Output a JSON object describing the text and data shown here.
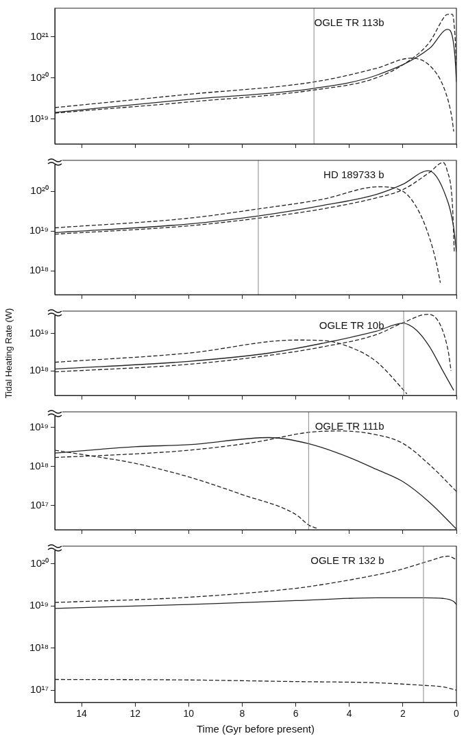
{
  "chart_data": [
    {
      "type": "line",
      "log": true,
      "grid": false,
      "legend": false,
      "tick_labels": "y",
      "xlim": [
        15,
        0
      ],
      "xticks": [
        {
          "value": 14,
          "label": null
        },
        {
          "value": 12,
          "label": null
        },
        {
          "value": 10,
          "label": null
        },
        {
          "value": 8,
          "label": null
        },
        {
          "value": 6,
          "label": null
        },
        {
          "value": 4,
          "label": null
        },
        {
          "value": 2,
          "label": null
        },
        {
          "value": 0,
          "label": null
        }
      ],
      "ylim": [
        2.5e+18,
        4.9e+21
      ],
      "yticks": [
        {
          "value": 1e+19,
          "label": "10¹⁹"
        },
        {
          "value": 1e+20,
          "label": "10²⁰"
        },
        {
          "value": 1e+21,
          "label": "10²¹"
        }
      ],
      "series": [
        {
          "color": "#222222",
          "line_style": "solid",
          "x": [
            15,
            10,
            5.3,
            3,
            1,
            0.33,
            0.15,
            0.05,
            0
          ],
          "values": [
            1.45e+19,
            3e+19,
            5.6e+19,
            1.15e+20,
            5.2e+20,
            1.5e+21,
            1e+21,
            3e+20,
            8e+19
          ]
        },
        {
          "color": "#222222",
          "line_style": "dashed",
          "x": [
            15,
            10,
            5.3,
            3,
            1.7,
            1,
            0.46,
            0.18,
            0.1
          ],
          "values": [
            1.9e+19,
            4e+19,
            8e+19,
            1.7e+20,
            3e+20,
            2e+20,
            5.6e+19,
            1.2e+19,
            5e+18
          ]
        },
        {
          "color": "#222222",
          "line_style": "dashed",
          "x": [
            15,
            10,
            5.3,
            3,
            1.7,
            1,
            0.4,
            0.3,
            0.15,
            0.05,
            0
          ],
          "values": [
            1.4e+19,
            2.6e+19,
            5.1e+19,
            1e+20,
            2.8e+20,
            7.4e+20,
            3.3e+21,
            3.5e+21,
            3.5e+21,
            1e+21,
            2e+20
          ]
        }
      ],
      "ref_lines": [
        {
          "axis": "x",
          "value": 5.32,
          "color": "#888888"
        }
      ],
      "annotations": [
        "OGLE TR 113b"
      ]
    },
    {
      "type": "line",
      "log": true,
      "grid": false,
      "legend": false,
      "tick_labels": "y",
      "xlim": [
        15,
        0
      ],
      "xticks": [
        {
          "value": 14,
          "label": null
        },
        {
          "value": 12,
          "label": null
        },
        {
          "value": 10,
          "label": null
        },
        {
          "value": 8,
          "label": null
        },
        {
          "value": 6,
          "label": null
        },
        {
          "value": 4,
          "label": null
        },
        {
          "value": 2,
          "label": null
        },
        {
          "value": 0,
          "label": null
        }
      ],
      "ylim": [
        2.5e+17,
        6e+20
      ],
      "yticks": [
        {
          "value": 1e+18,
          "label": "10¹⁸"
        },
        {
          "value": 1e+19,
          "label": "10¹⁹"
        },
        {
          "value": 1e+20,
          "label": "10²⁰"
        }
      ],
      "series": [
        {
          "color": "#222222",
          "line_style": "solid",
          "x": [
            15,
            10,
            7.4,
            5,
            3,
            2,
            1.05,
            0.46,
            0.1,
            0
          ],
          "values": [
            9.1e+18,
            1.5e+19,
            2.4e+19,
            4.4e+19,
            8.3e+19,
            1.5e+20,
            3.3e+20,
            9.8e+19,
            1.2e+19,
            3e+18
          ]
        },
        {
          "color": "#222222",
          "line_style": "dashed",
          "x": [
            15,
            10,
            7.4,
            5,
            2.9,
            2,
            1.4,
            1,
            0.75,
            0.6
          ],
          "values": [
            1.2e+19,
            2.1e+19,
            3.6e+19,
            6.3e+19,
            1.3e+20,
            1e+20,
            3.1e+19,
            6.6e+18,
            1.6e+18,
            5e+17
          ]
        },
        {
          "color": "#222222",
          "line_style": "dashed",
          "x": [
            15,
            10,
            7.4,
            5,
            3,
            2,
            1,
            0.5,
            0.35,
            0.15,
            0.08
          ],
          "values": [
            8.3e+18,
            1.35e+19,
            2.1e+19,
            3.6e+19,
            6.8e+19,
            1.1e+20,
            3e+20,
            5.3e+20,
            3.4e+20,
            4.8e+19,
            3e+18
          ]
        }
      ],
      "ref_lines": [
        {
          "axis": "x",
          "value": 7.4,
          "color": "#888888"
        }
      ],
      "annotations": [
        "HD 189733 b"
      ]
    },
    {
      "type": "line",
      "log": true,
      "grid": false,
      "legend": false,
      "tick_labels": "y",
      "xlim": [
        15,
        0
      ],
      "ylabel": "Tidal Heating Rate (W)",
      "xticks": [
        {
          "value": 14,
          "label": null
        },
        {
          "value": 12,
          "label": null
        },
        {
          "value": 10,
          "label": null
        },
        {
          "value": 8,
          "label": null
        },
        {
          "value": 6,
          "label": null
        },
        {
          "value": 4,
          "label": null
        },
        {
          "value": 2,
          "label": null
        },
        {
          "value": 0,
          "label": null
        }
      ],
      "ylim": [
        2.2e+17,
        4e+19
      ],
      "yticks": [
        {
          "value": 1e+18,
          "label": "10¹⁸"
        },
        {
          "value": 1e+19,
          "label": "10¹⁹"
        }
      ],
      "series": [
        {
          "color": "#222222",
          "line_style": "solid",
          "x": [
            15,
            10,
            7,
            5,
            3,
            2,
            1.5,
            1,
            0.5,
            0.1
          ],
          "values": [
            1.12e+18,
            1.8e+18,
            3e+18,
            5.5e+18,
            1.15e+19,
            1.9e+19,
            1.25e+19,
            4.4e+18,
            9.8e+17,
            3e+17
          ]
        },
        {
          "color": "#222222",
          "line_style": "dashed",
          "x": [
            15,
            10,
            6,
            5,
            4,
            3,
            2,
            1.85
          ],
          "values": [
            1.7e+18,
            3e+18,
            6.7e+18,
            6.5e+18,
            4.4e+18,
            1.8e+18,
            3.2e+17,
            2.4e+17
          ]
        },
        {
          "color": "#222222",
          "line_style": "dashed",
          "x": [
            15,
            10,
            7,
            5,
            3,
            2,
            1.05,
            0.6,
            0.3,
            0.2
          ],
          "values": [
            9.4e+17,
            1.5e+18,
            2.6e+18,
            4.4e+18,
            9.3e+18,
            1.95e+19,
            3.3e+19,
            1.7e+19,
            3.2e+18,
            1e+18
          ]
        }
      ],
      "ref_lines": [
        {
          "axis": "x",
          "value": 1.97,
          "color": "#888888"
        }
      ],
      "annotations": [
        "OGLE TR 10b"
      ]
    },
    {
      "type": "line",
      "log": true,
      "grid": false,
      "legend": false,
      "tick_labels": "y",
      "xlim": [
        15,
        0
      ],
      "xticks": [
        {
          "value": 14,
          "label": null
        },
        {
          "value": 12,
          "label": null
        },
        {
          "value": 10,
          "label": null
        },
        {
          "value": 8,
          "label": null
        },
        {
          "value": 6,
          "label": null
        },
        {
          "value": 4,
          "label": null
        },
        {
          "value": 2,
          "label": null
        },
        {
          "value": 0,
          "label": null
        }
      ],
      "ylim": [
        2.4e+16,
        2.5e+19
      ],
      "yticks": [
        {
          "value": 1e+17,
          "label": "10¹⁷"
        },
        {
          "value": 1e+18,
          "label": "10¹⁸"
        },
        {
          "value": 1e+19,
          "label": "10¹⁹"
        }
      ],
      "series": [
        {
          "color": "#222222",
          "line_style": "solid",
          "x": [
            15,
            12,
            10,
            7,
            5.5,
            4,
            3,
            2,
            1,
            0
          ],
          "values": [
            2.2e+18,
            3.2e+18,
            3.6e+18,
            5.5e+18,
            3.8e+18,
            1.7e+18,
            8.5e+17,
            4.1e+17,
            1.2e+17,
            2.5e+16
          ]
        },
        {
          "color": "#222222",
          "line_style": "dashed",
          "x": [
            15,
            12,
            10,
            7.5,
            5.5,
            4.3,
            3,
            2,
            1,
            0
          ],
          "values": [
            1.7e+18,
            2.1e+18,
            2.6e+18,
            4.2e+18,
            7.5e+18,
            8.1e+18,
            6.5e+18,
            3.9e+18,
            1.1e+18,
            2.3e+17
          ]
        },
        {
          "color": "#222222",
          "line_style": "dashed",
          "x": [
            15,
            13.5,
            12,
            10,
            8,
            6,
            5.5,
            5.2
          ],
          "values": [
            2.6e+18,
            1.8e+18,
            1.2e+18,
            5.4e+17,
            1.9e+17,
            5.9e+16,
            3.1e+16,
            2.6e+16
          ]
        }
      ],
      "ref_lines": [
        {
          "axis": "x",
          "value": 5.52,
          "color": "#888888"
        }
      ],
      "annotations": [
        "OGLE TR 111b"
      ]
    },
    {
      "type": "line",
      "log": true,
      "grid": false,
      "legend": false,
      "xlim": [
        15,
        0
      ],
      "xlabel": "Time (Gyr before present)",
      "xticks": [
        14,
        12,
        10,
        8,
        6,
        4,
        2,
        0
      ],
      "ylim": [
        5.1e+16,
        2.6e+20
      ],
      "yticks": [
        {
          "value": 1e+17,
          "label": "10¹⁷"
        },
        {
          "value": 1e+18,
          "label": "10¹⁸"
        },
        {
          "value": 1e+19,
          "label": "10¹⁹"
        },
        {
          "value": 1e+20,
          "label": "10²⁰"
        }
      ],
      "series": [
        {
          "color": "#222222",
          "line_style": "solid",
          "x": [
            15,
            10,
            6,
            3,
            1.2,
            0.5,
            0.1,
            0
          ],
          "values": [
            8.7e+18,
            1.08e+19,
            1.33e+19,
            1.55e+19,
            1.55e+19,
            1.5e+19,
            1.27e+19,
            1.08e+19
          ]
        },
        {
          "color": "#222222",
          "line_style": "dashed",
          "x": [
            15,
            10,
            6,
            5,
            3,
            2,
            1,
            0.3,
            0
          ],
          "values": [
            1.2e+19,
            1.6e+19,
            2.6e+19,
            3.2e+19,
            5.4e+19,
            7.5e+19,
            1.17e+20,
            1.5e+20,
            1.25e+20
          ]
        },
        {
          "color": "#222222",
          "line_style": "dashed",
          "x": [
            15,
            10,
            6,
            3,
            1.2,
            0.5,
            0
          ],
          "values": [
            1.8e+17,
            1.75e+17,
            1.6e+17,
            1.5e+17,
            1.3e+17,
            1.2e+17,
            1e+17
          ]
        }
      ],
      "ref_lines": [
        {
          "axis": "x",
          "value": 1.23,
          "color": "#888888"
        }
      ],
      "annotations": [
        "OGLE TR 132 b"
      ]
    }
  ]
}
